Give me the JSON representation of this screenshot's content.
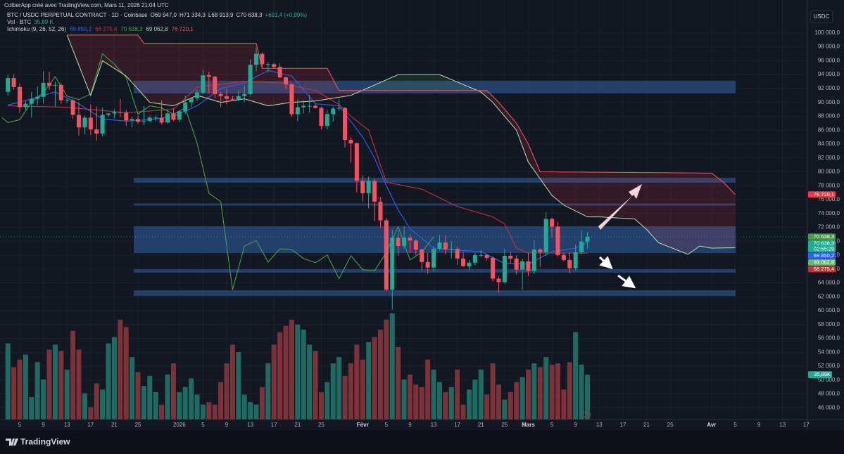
{
  "header": {
    "credit": "ColberApp créé avec TradingView.com, Mars 11, 2026 21:04 UTC",
    "symbol": "BTC / USDC PERPETUAL CONTRACT · 1D · Coinbase",
    "ohlc": [
      "O69 947,0",
      "H71 334,3",
      "L68 913,9",
      "C70 638,3",
      "+691,4 (+0,99%)"
    ],
    "vol_legend": "Vol · BTC",
    "vol_value": "35,89 K",
    "ichimoku_legend": "Ichimoku (9, 26, 52, 26)",
    "ichimoku_values": [
      {
        "text": "69 850,2",
        "color": "#2962ff"
      },
      {
        "text": "68 275,4",
        "color": "#c2323d"
      },
      {
        "text": "70 638,3",
        "color": "#43a047"
      },
      {
        "text": "69 062,8",
        "color": "#a5d6a7"
      },
      {
        "text": "76 720,1",
        "color": "#ef5350"
      }
    ],
    "currency": "USDC",
    "logo": "TradingView"
  },
  "chart_data": {
    "type": "candlestick",
    "up_color": "#22ab94",
    "down_color": "#f7525f",
    "grid": true,
    "xlim": [
      -1.333,
      135.2
    ],
    "xticks": [
      {
        "value": 2,
        "label": "5"
      },
      {
        "value": 6,
        "label": "9"
      },
      {
        "value": 10,
        "label": "13"
      },
      {
        "value": 14,
        "label": "17"
      },
      {
        "value": 18,
        "label": "21"
      },
      {
        "value": 22,
        "label": "25"
      },
      {
        "value": 29,
        "label": "2026"
      },
      {
        "value": 33,
        "label": "5"
      },
      {
        "value": 37,
        "label": "9"
      },
      {
        "value": 41,
        "label": "13"
      },
      {
        "value": 45,
        "label": "17"
      },
      {
        "value": 49,
        "label": "21"
      },
      {
        "value": 53,
        "label": "25"
      },
      {
        "value": 60,
        "label": "Févr"
      },
      {
        "value": 64,
        "label": "5"
      },
      {
        "value": 68,
        "label": "9"
      },
      {
        "value": 72,
        "label": "13"
      },
      {
        "value": 76,
        "label": "17"
      },
      {
        "value": 80,
        "label": "21"
      },
      {
        "value": 84,
        "label": "25"
      },
      {
        "value": 88,
        "label": "Mars"
      },
      {
        "value": 92,
        "label": "5"
      },
      {
        "value": 96,
        "label": "9"
      },
      {
        "value": 100,
        "label": "13"
      },
      {
        "value": 104,
        "label": "17"
      },
      {
        "value": 108,
        "label": "21"
      },
      {
        "value": 112,
        "label": "25"
      },
      {
        "value": 119,
        "label": "Avr"
      },
      {
        "value": 123,
        "label": "5"
      },
      {
        "value": 127,
        "label": "9"
      },
      {
        "value": 131,
        "label": "13"
      },
      {
        "value": 135,
        "label": "17"
      }
    ],
    "ylim": [
      44300,
      101000
    ],
    "yticks": [
      {
        "value": 46000,
        "label": "46 000,0"
      },
      {
        "value": 48000,
        "label": "48 000,0"
      },
      {
        "value": 50000,
        "label": "50 000,0"
      },
      {
        "value": 52000,
        "label": "52 000,0"
      },
      {
        "value": 54000,
        "label": "54 000,0"
      },
      {
        "value": 56000,
        "label": "56 000,0"
      },
      {
        "value": 58000,
        "label": "58 000,0"
      },
      {
        "value": 60000,
        "label": "60 000,0"
      },
      {
        "value": 62000,
        "label": "62 000,0"
      },
      {
        "value": 64000,
        "label": "64 000,0"
      },
      {
        "value": 66000,
        "label": "66 000,0"
      },
      {
        "value": 68000,
        "label": "68 000,0"
      },
      {
        "value": 70000,
        "label": "70 000,0"
      },
      {
        "value": 72000,
        "label": "72 000,0"
      },
      {
        "value": 74000,
        "label": "74 000,0"
      },
      {
        "value": 76000,
        "label": "76 000,0"
      },
      {
        "value": 78000,
        "label": "78 000,0"
      },
      {
        "value": 80000,
        "label": "80 000,0"
      },
      {
        "value": 82000,
        "label": "82 000,0"
      },
      {
        "value": 84000,
        "label": "84 000,0"
      },
      {
        "value": 86000,
        "label": "86 000,0"
      },
      {
        "value": 88000,
        "label": "88 000,0"
      },
      {
        "value": 90000,
        "label": "90 000,0"
      },
      {
        "value": 92000,
        "label": "92 000,0"
      },
      {
        "value": 94000,
        "label": "94 000,0"
      },
      {
        "value": 96000,
        "label": "96 000,0"
      },
      {
        "value": 98000,
        "label": "98 000,0"
      },
      {
        "value": 100000,
        "label": "100 000,0"
      }
    ],
    "candles": {
      "open": [
        91500,
        93500,
        92200,
        89300,
        89800,
        90500,
        90800,
        92800,
        92400,
        92500,
        90300,
        90300,
        88200,
        86400,
        87800,
        86100,
        85500,
        88200,
        88400,
        88600,
        88500,
        87400,
        87600,
        87200,
        87300,
        87800,
        87800,
        87100,
        88400,
        87500,
        88700,
        90000,
        90600,
        91400,
        93900,
        93700,
        91200,
        90900,
        90500,
        90400,
        90900,
        91200,
        95400,
        97000,
        95500,
        95500,
        95100,
        93600,
        92600,
        88300,
        89300,
        89500,
        89500,
        89200,
        86600,
        88300,
        89100,
        89200,
        84600,
        84100,
        78700,
        76900,
        78700,
        75700,
        73000,
        63000,
        70500,
        69300,
        70500,
        70100,
        68800,
        67000,
        66200,
        68900,
        69800,
        68800,
        68900,
        67500,
        66400,
        66900,
        68000,
        68000,
        67600,
        64600,
        64100,
        67900,
        67500,
        65900,
        67100,
        65700,
        68800,
        68400,
        73200,
        72100,
        68000,
        67300,
        66100,
        68400,
        69947
      ],
      "high": [
        94000,
        94000,
        92700,
        90200,
        91500,
        92300,
        94500,
        94400,
        93000,
        92800,
        90600,
        90500,
        90000,
        88100,
        89700,
        89400,
        89200,
        88500,
        89000,
        90500,
        88900,
        87900,
        88100,
        89500,
        88000,
        88100,
        90300,
        89000,
        89200,
        88800,
        91000,
        90700,
        91800,
        94700,
        94400,
        93800,
        91500,
        91900,
        90900,
        91800,
        92400,
        96200,
        97900,
        97200,
        95800,
        95700,
        95600,
        93700,
        92800,
        90400,
        90300,
        91100,
        89800,
        89400,
        88900,
        89400,
        90500,
        89300,
        85000,
        84200,
        79500,
        79300,
        79000,
        76400,
        73300,
        71700,
        71500,
        72200,
        71000,
        70300,
        69000,
        68300,
        69300,
        70900,
        70800,
        70000,
        69200,
        68400,
        67300,
        68300,
        68700,
        68200,
        67800,
        64900,
        68900,
        68400,
        68000,
        67500,
        68300,
        70100,
        69000,
        74200,
        73400,
        72800,
        68300,
        68300,
        69500,
        71600,
        71334.3
      ],
      "low": [
        91000,
        91800,
        88500,
        88900,
        87800,
        89600,
        89800,
        91800,
        89400,
        89800,
        89900,
        87600,
        85200,
        85400,
        85300,
        84500,
        85100,
        87900,
        87700,
        87900,
        86600,
        86400,
        86900,
        86700,
        87200,
        87300,
        86800,
        86900,
        87300,
        87200,
        88300,
        89300,
        90200,
        91200,
        91300,
        90600,
        89300,
        89700,
        90200,
        90200,
        90000,
        91000,
        94500,
        95000,
        94300,
        94900,
        93500,
        91900,
        87900,
        87300,
        88400,
        88500,
        89100,
        86100,
        86100,
        87200,
        88800,
        83500,
        81300,
        77000,
        75700,
        74700,
        72900,
        72000,
        62800,
        60100,
        67900,
        68900,
        68300,
        68000,
        65800,
        65300,
        65700,
        68700,
        68100,
        67500,
        66600,
        66300,
        65800,
        66500,
        67700,
        67200,
        64200,
        62600,
        63900,
        66800,
        65200,
        63000,
        65000,
        65300,
        66300,
        67800,
        70500,
        67800,
        67100,
        65400,
        65800,
        68100,
        68913.9
      ],
      "close": [
        93500,
        92200,
        89300,
        89800,
        90500,
        90800,
        92800,
        92400,
        92500,
        90300,
        90300,
        88200,
        86400,
        87800,
        86100,
        85500,
        88200,
        88400,
        88600,
        88500,
        87400,
        87600,
        87200,
        87300,
        87800,
        87800,
        87100,
        88400,
        87500,
        88700,
        90000,
        90600,
        91400,
        93900,
        93700,
        91200,
        90900,
        90500,
        90400,
        90900,
        91200,
        95400,
        97000,
        95500,
        95500,
        95100,
        93600,
        92600,
        88300,
        89300,
        89500,
        89500,
        89200,
        86600,
        88300,
        89100,
        89200,
        84600,
        84100,
        78700,
        76900,
        78700,
        75700,
        73000,
        63000,
        70500,
        69300,
        70500,
        70100,
        68800,
        67000,
        66200,
        68900,
        69800,
        68800,
        68900,
        67500,
        66400,
        66900,
        68000,
        68000,
        67600,
        64600,
        64100,
        67900,
        67500,
        65900,
        67100,
        65700,
        68800,
        68400,
        73200,
        72100,
        68000,
        67300,
        66100,
        68400,
        69947,
        70638.3
      ]
    },
    "volume": {
      "ylim": [
        0,
        315000
      ],
      "up_color": "#1e6b63",
      "down_color": "#7c3239",
      "values": [
        61000,
        42000,
        48000,
        52000,
        18000,
        46000,
        32000,
        56000,
        60000,
        55000,
        40000,
        71000,
        56000,
        21000,
        10000,
        29000,
        24000,
        61000,
        66000,
        80000,
        74000,
        50000,
        38000,
        27000,
        35000,
        22000,
        12000,
        36000,
        45000,
        22000,
        26000,
        33000,
        20000,
        12000,
        14000,
        12000,
        30000,
        45000,
        60000,
        54000,
        20000,
        14000,
        12000,
        26000,
        45000,
        60000,
        70000,
        75000,
        80000,
        76000,
        72000,
        60000,
        55000,
        22000,
        30000,
        45000,
        50000,
        35000,
        45000,
        60000,
        48000,
        62000,
        66000,
        72000,
        80000,
        85000,
        58000,
        32000,
        36000,
        28000,
        26000,
        48000,
        40000,
        30000,
        22000,
        26000,
        40000,
        12000,
        24000,
        32000,
        40000,
        20000,
        45000,
        28000,
        16000,
        22000,
        30000,
        34000,
        40000,
        45000,
        42000,
        50000,
        44000,
        45000,
        24000,
        46000,
        70000,
        44000,
        35890
      ],
      "tag": {
        "value": 35890,
        "label": "35,89K",
        "color": "#22ab94"
      }
    },
    "lines": [
      {
        "color": "#2962ff",
        "x": [
          0,
          4,
          8,
          12,
          16,
          20,
          24,
          28,
          32,
          36,
          40,
          44,
          48,
          52,
          56,
          60,
          62,
          64,
          66,
          68,
          72,
          76,
          80,
          84,
          88,
          92,
          96,
          98
        ],
        "values": [
          89600,
          90500,
          91500,
          89800,
          87600,
          87300,
          87500,
          88000,
          89500,
          92000,
          92800,
          94600,
          93800,
          89800,
          89500,
          85000,
          82000,
          78000,
          74500,
          71800,
          69000,
          68700,
          68500,
          66800,
          66700,
          68500,
          69000,
          69850.2
        ]
      },
      {
        "color": "#c2323d",
        "x": [
          0,
          10,
          20,
          28,
          32,
          40,
          46,
          52,
          56,
          58,
          61,
          64,
          70,
          76,
          82,
          84,
          86,
          88,
          98
        ],
        "values": [
          89500,
          89300,
          88500,
          89000,
          92200,
          93000,
          92800,
          91700,
          89700,
          88000,
          86000,
          78500,
          77500,
          75000,
          73500,
          72500,
          69000,
          68300,
          68275.4
        ]
      },
      {
        "color": "#43a047",
        "x": [
          -1,
          0,
          2,
          4,
          6,
          8,
          10,
          12,
          14,
          16,
          18,
          20,
          22,
          24,
          26,
          28,
          30,
          32,
          34,
          36,
          38,
          40,
          42,
          44,
          46,
          48,
          50,
          52,
          54,
          56,
          58,
          60,
          62,
          64,
          66,
          68,
          70,
          72
        ],
        "values": [
          87800,
          87100,
          87500,
          90000,
          91400,
          93700,
          90900,
          90400,
          91200,
          97000,
          95500,
          93600,
          88300,
          89500,
          89200,
          88300,
          89200,
          84100,
          76900,
          75700,
          63000,
          69300,
          70100,
          67000,
          68900,
          68800,
          67500,
          66900,
          68000,
          64600,
          67900,
          65900,
          65700,
          68400,
          72100,
          67300,
          68400,
          70638.3
        ]
      },
      {
        "color": "#a5d6a7",
        "x": [
          10,
          14,
          16,
          20,
          24,
          28,
          32,
          36,
          40,
          44,
          48,
          52,
          58,
          62,
          66,
          73,
          80,
          82,
          86,
          88,
          92,
          94,
          98,
          100,
          106,
          108,
          110,
          115,
          117,
          119,
          123
        ],
        "values": [
          99700,
          91000,
          96000,
          93800,
          90000,
          89500,
          91000,
          90000,
          90500,
          89500,
          90000,
          90200,
          91000,
          92500,
          94000,
          94000,
          91500,
          90000,
          86000,
          81400,
          76600,
          75200,
          73500,
          73500,
          73200,
          71700,
          69800,
          68100,
          69300,
          69000,
          69062.8
        ]
      },
      {
        "color": "#ef5350",
        "x": [
          10,
          22,
          23,
          42,
          43,
          54,
          56,
          81,
          83,
          86,
          88,
          90,
          119,
          121,
          123
        ],
        "values": [
          99700,
          99700,
          98500,
          98500,
          94900,
          94900,
          91700,
          91700,
          90000,
          87000,
          84000,
          80000,
          79800,
          78500,
          76720.1
        ]
      }
    ],
    "cloud": {
      "up_color": "#4caf50",
      "down_color": "#f23645"
    },
    "zones": [
      {
        "top": 93110,
        "bottom": 91290
      },
      {
        "top": 79130,
        "bottom": 78420
      },
      {
        "top": 75430,
        "bottom": 75130
      },
      {
        "top": 72140,
        "bottom": 68290
      },
      {
        "top": 65960,
        "bottom": 65460
      },
      {
        "top": 62920,
        "bottom": 62110
      }
    ],
    "zone_color": "#2a4f86",
    "price_tags": [
      {
        "value": 76720.1,
        "label": "76 720,1",
        "color": "#f23645"
      },
      {
        "value": 70638.3,
        "label": "70 638,3",
        "color": "#43a047"
      },
      {
        "value": 70638.3,
        "label": "70 638,3",
        "sub": "02:55:29",
        "color": "#22ab94"
      },
      {
        "value": 69850.2,
        "label": "69 850,2",
        "color": "#2962ff"
      },
      {
        "value": 69062.8,
        "label": "69 062,8",
        "color": "#66bb6a"
      },
      {
        "value": 68275.4,
        "label": "68 275,4",
        "color": "#c2323d"
      }
    ]
  }
}
